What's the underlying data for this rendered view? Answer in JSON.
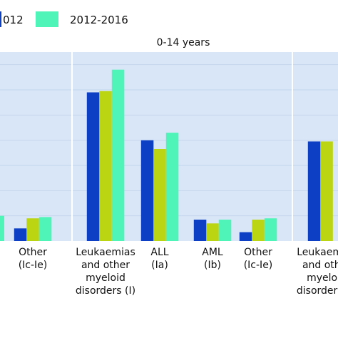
{
  "colors": {
    "plot_bg": "#d8e6f7",
    "divider": "#ffffff",
    "gridline": "#c3d5ec"
  },
  "legend": [
    {
      "label": "012",
      "color": "#0d3fc4"
    },
    {
      "label": "2012-2016",
      "color": "#4ff5b8"
    }
  ],
  "chart_data": {
    "type": "bar",
    "group_label": "0-14 years",
    "series": [
      {
        "name": "012",
        "color": "#0d3fc4"
      },
      {
        "color": "#bcd512"
      },
      {
        "name": "2012-2016",
        "color": "#4ff5b8"
      }
    ],
    "categories": [
      {
        "label": "Other\n(Ic-Ie)",
        "values": [
          null,
          null,
          null
        ],
        "partial": "left"
      },
      {
        "label": "Other\n(Ic-Ie)",
        "values": [
          1.0,
          1.8,
          1.9
        ]
      },
      {
        "label": "Leukaemias\nand other\nmyeloid\ndisorders (I)",
        "values": [
          11.8,
          11.9,
          13.6
        ]
      },
      {
        "label": "ALL\n(Ia)",
        "values": [
          8.0,
          7.3,
          8.6
        ]
      },
      {
        "label": "AML\n(Ib)",
        "values": [
          1.7,
          1.4,
          1.7
        ]
      },
      {
        "label": "Other\n(Ic-Ie)",
        "values": [
          0.7,
          1.7,
          1.8
        ]
      },
      {
        "label": "Leukaemias\nand other\nmyeloid\ndisorders (I)",
        "values": [
          7.9,
          7.9,
          null
        ],
        "partial": "right"
      }
    ],
    "left_edge_partial_bar": {
      "series_index": 2,
      "value": 2.0
    },
    "ylim": [
      0,
      15
    ],
    "grid": true,
    "dividers_after_categories": [
      1,
      5
    ]
  }
}
